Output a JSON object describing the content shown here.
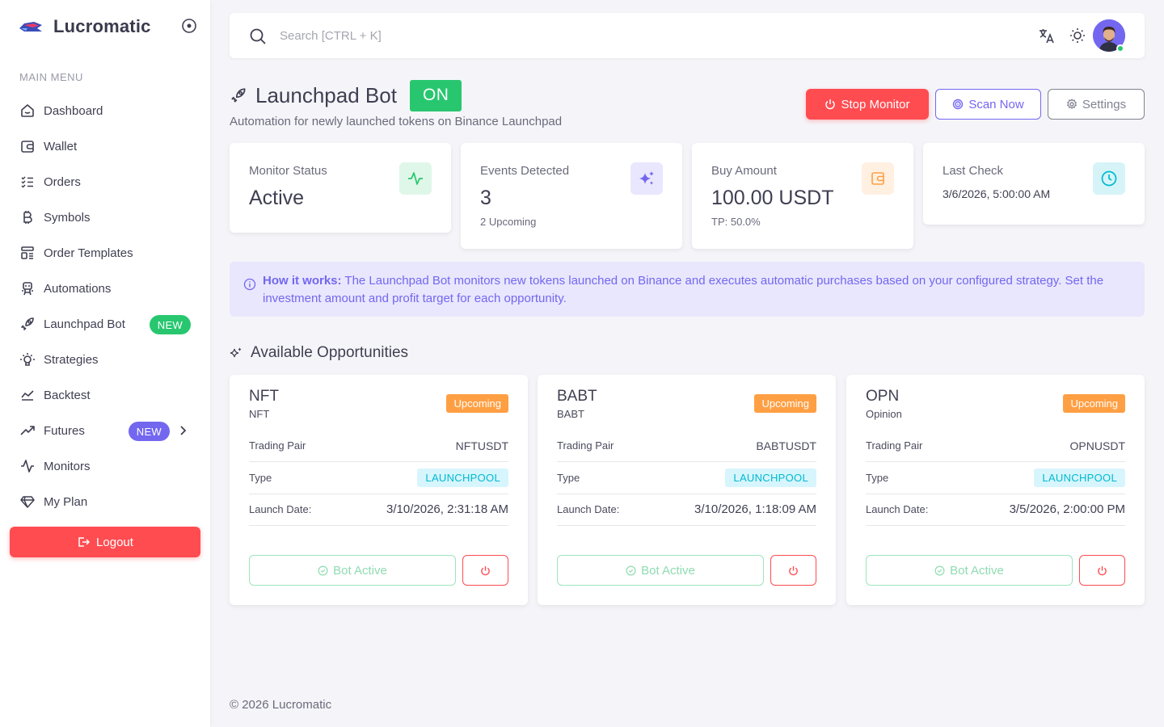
{
  "brand": {
    "name": "Lucromatic"
  },
  "sidebar": {
    "menu_header": "MAIN MENU",
    "items": [
      {
        "label": "Dashboard",
        "icon": "home-icon"
      },
      {
        "label": "Wallet",
        "icon": "wallet-icon"
      },
      {
        "label": "Orders",
        "icon": "list-check-icon"
      },
      {
        "label": "Symbols",
        "icon": "bitcoin-icon"
      },
      {
        "label": "Order Templates",
        "icon": "template-icon"
      },
      {
        "label": "Automations",
        "icon": "robot-icon"
      },
      {
        "label": "Launchpad Bot",
        "icon": "rocket-icon",
        "badge": "NEW"
      },
      {
        "label": "Strategies",
        "icon": "bulb-icon"
      },
      {
        "label": "Backtest",
        "icon": "chart-area-icon"
      },
      {
        "label": "Futures",
        "icon": "trending-up-icon",
        "badge": "NEW"
      },
      {
        "label": "Monitors",
        "icon": "activity-icon"
      },
      {
        "label": "My Plan",
        "icon": "diamond-icon"
      }
    ],
    "logout_label": "Logout"
  },
  "topbar": {
    "search_placeholder": "Search [CTRL + K]"
  },
  "page": {
    "title": "Launchpad Bot",
    "status_badge": "ON",
    "subtitle": "Automation for newly launched tokens on Binance Launchpad",
    "buttons": {
      "stop": "Stop Monitor",
      "scan": "Scan Now",
      "settings": "Settings"
    }
  },
  "stats": [
    {
      "label": "Monitor Status",
      "value": "Active",
      "icon": "activity-icon",
      "color": "#28c76f",
      "bg": "#dff7e9"
    },
    {
      "label": "Events Detected",
      "value": "3",
      "sub": "2 Upcoming",
      "icon": "sparkles-icon",
      "color": "#7367f0",
      "bg": "#e9e7fd"
    },
    {
      "label": "Buy Amount",
      "value": "100.00 USDT",
      "sub": "TP: 50.0%",
      "icon": "wallet-icon",
      "color": "#ff9f43",
      "bg": "#fff0e1"
    },
    {
      "label": "Last Check",
      "value": "3/6/2026, 5:00:00 AM",
      "icon": "clock-icon",
      "color": "#00bad1",
      "bg": "#d6f4f8"
    }
  ],
  "info": {
    "strong": "How it works:",
    "text": " The Launchpad Bot monitors new tokens launched on Binance and executes automatic purchases based on your configured strategy. Set the investment amount and profit target for each opportunity."
  },
  "opportunities_title": "Available Opportunities",
  "labels": {
    "trading_pair": "Trading Pair",
    "type": "Type",
    "launch_date": "Launch Date:",
    "bot_active": "Bot Active"
  },
  "opportunities": [
    {
      "name": "NFT",
      "full_name": "NFT",
      "status": "Upcoming",
      "pair": "NFTUSDT",
      "type": "LAUNCHPOOL",
      "launch_date": "3/10/2026, 2:31:18 AM"
    },
    {
      "name": "BABT",
      "full_name": "BABT",
      "status": "Upcoming",
      "pair": "BABTUSDT",
      "type": "LAUNCHPOOL",
      "launch_date": "3/10/2026, 1:18:09 AM"
    },
    {
      "name": "OPN",
      "full_name": "Opinion",
      "status": "Upcoming",
      "pair": "OPNUSDT",
      "type": "LAUNCHPOOL",
      "launch_date": "3/5/2026, 2:00:00 PM"
    }
  ],
  "footer": "© 2026 Lucromatic"
}
